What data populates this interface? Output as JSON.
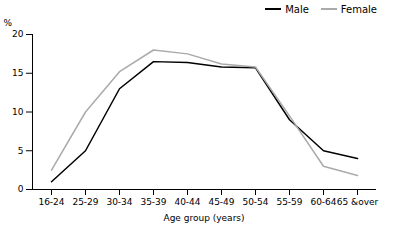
{
  "chart_data": {
    "type": "line",
    "categories": [
      "16-24",
      "25-29",
      "30-34",
      "35-39",
      "40-44",
      "45-49",
      "50-54",
      "55-59",
      "60-64",
      "65 &over"
    ],
    "series": [
      {
        "name": "Male",
        "color": "#000000",
        "values": [
          1.0,
          5.0,
          13.0,
          16.5,
          16.4,
          15.8,
          15.7,
          9.0,
          5.0,
          4.0
        ]
      },
      {
        "name": "Female",
        "color": "#aaaaaa",
        "values": [
          2.5,
          10.0,
          15.2,
          18.0,
          17.5,
          16.2,
          15.8,
          9.5,
          3.0,
          1.8
        ]
      }
    ],
    "xlabel": "Age group (years)",
    "ylabel": "%",
    "ylim": [
      0,
      20
    ],
    "yticks": [
      0,
      5,
      10,
      15,
      20
    ],
    "grid": false,
    "legend": "upper right"
  }
}
